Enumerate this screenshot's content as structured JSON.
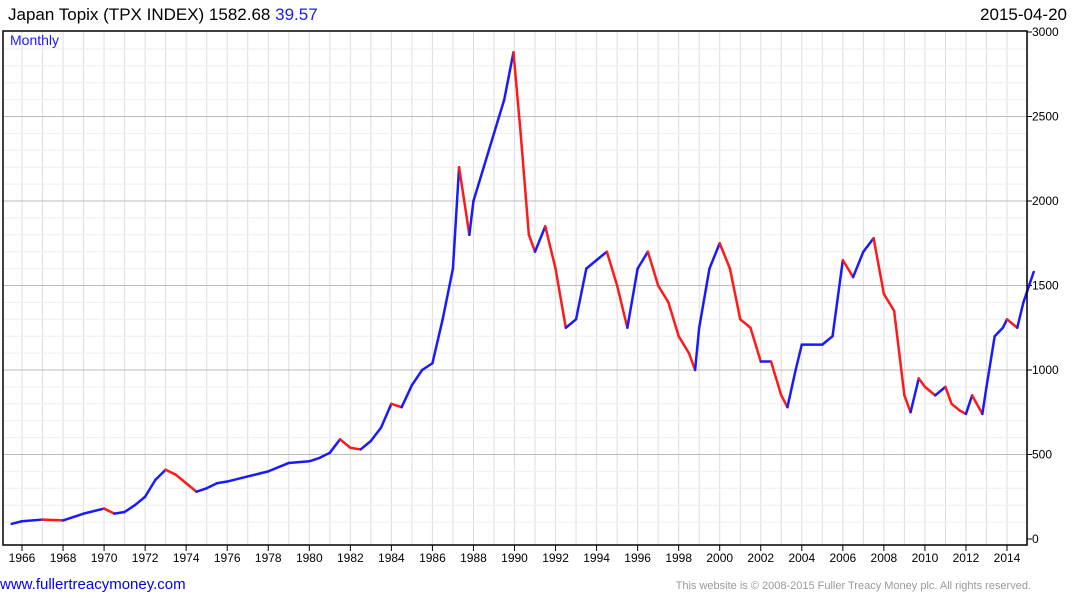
{
  "header": {
    "title": "Japan Topix (TPX INDEX) 1582.68",
    "change": "39.57",
    "date": "2015-04-20"
  },
  "footer": {
    "site": "www.fullertreacymoney.com",
    "copyright": "This website is © 2008-2015 Fuller Treacy Money plc. All rights reserved."
  },
  "colors": {
    "up": "#1a1aff",
    "down": "#ff1a1a",
    "grid": "#dddddd"
  },
  "chart_data": {
    "type": "line",
    "title": "Japan Topix (TPX INDEX)",
    "frequency_label": "Monthly",
    "xlabel": "",
    "ylabel": "",
    "xlim": [
      1965.5,
      2015.5
    ],
    "ylim": [
      0,
      3000
    ],
    "yticks": [
      0,
      500,
      1000,
      1500,
      2000,
      2500,
      3000
    ],
    "xticks": [
      1966,
      1968,
      1970,
      1972,
      1974,
      1976,
      1978,
      1980,
      1982,
      1984,
      1986,
      1988,
      1990,
      1992,
      1994,
      1996,
      1998,
      2000,
      2002,
      2004,
      2006,
      2008,
      2010,
      2012,
      2014
    ],
    "grid": true,
    "series": [
      {
        "name": "TPX INDEX",
        "x": [
          1965.5,
          1966,
          1967,
          1968,
          1969,
          1970,
          1970.5,
          1971,
          1971.5,
          1972,
          1972.5,
          1973,
          1973.5,
          1974,
          1974.5,
          1975,
          1975.5,
          1976,
          1977,
          1978,
          1979,
          1980,
          1980.5,
          1981,
          1981.5,
          1982,
          1982.5,
          1983,
          1983.5,
          1984,
          1984.5,
          1985,
          1985.5,
          1986,
          1986.5,
          1987,
          1987.3,
          1987.8,
          1988,
          1988.5,
          1989,
          1989.5,
          1989.95,
          1990.3,
          1990.7,
          1991,
          1991.5,
          1992,
          1992.5,
          1993,
          1993.5,
          1994,
          1994.5,
          1995,
          1995.5,
          1996,
          1996.5,
          1997,
          1997.5,
          1998,
          1998.5,
          1998.8,
          1999,
          1999.5,
          2000,
          2000.5,
          2001,
          2001.5,
          2002,
          2002.5,
          2003,
          2003.3,
          2003.7,
          2004,
          2004.5,
          2005,
          2005.5,
          2006,
          2006.5,
          2007,
          2007.5,
          2008,
          2008.5,
          2009,
          2009.3,
          2009.7,
          2010,
          2010.5,
          2011,
          2011.3,
          2011.7,
          2012,
          2012.3,
          2012.8,
          2013,
          2013.4,
          2013.8,
          2014,
          2014.5,
          2014.8,
          2015.3
        ],
        "y": [
          90,
          105,
          115,
          110,
          150,
          180,
          150,
          160,
          200,
          250,
          350,
          410,
          380,
          330,
          280,
          300,
          330,
          340,
          370,
          400,
          450,
          460,
          480,
          510,
          590,
          540,
          530,
          580,
          660,
          800,
          780,
          910,
          1000,
          1040,
          1300,
          1600,
          2200,
          1800,
          2000,
          2200,
          2400,
          2600,
          2880,
          2400,
          1800,
          1700,
          1850,
          1600,
          1250,
          1300,
          1600,
          1650,
          1700,
          1500,
          1250,
          1600,
          1700,
          1500,
          1400,
          1200,
          1100,
          1000,
          1250,
          1600,
          1750,
          1600,
          1300,
          1250,
          1050,
          1050,
          850,
          780,
          1000,
          1150,
          1150,
          1150,
          1200,
          1650,
          1550,
          1700,
          1780,
          1450,
          1350,
          850,
          750,
          950,
          900,
          850,
          900,
          800,
          760,
          740,
          850,
          740,
          900,
          1200,
          1250,
          1300,
          1250,
          1400,
          1580
        ]
      }
    ]
  }
}
